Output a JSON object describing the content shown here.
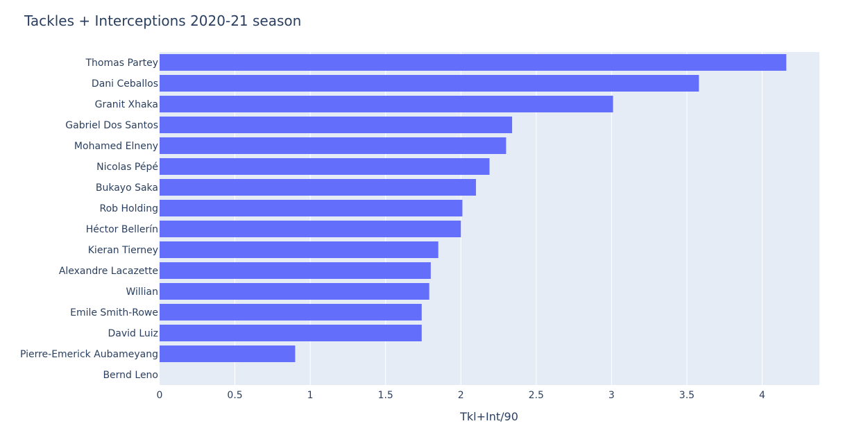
{
  "chart_data": {
    "type": "bar",
    "orientation": "horizontal",
    "title": "Tackles + Interceptions 2020-21 season",
    "xlabel": "Tkl+Int/90",
    "ylabel": "",
    "xlim": [
      0,
      4.38
    ],
    "x_ticks": [
      "0",
      "0.5",
      "1",
      "1.5",
      "2",
      "2.5",
      "3",
      "3.5",
      "4"
    ],
    "grid": true,
    "categories": [
      "Thomas Partey",
      "Dani Ceballos",
      "Granit Xhaka",
      "Gabriel Dos Santos",
      "Mohamed Elneny",
      "Nicolas Pépé",
      "Bukayo Saka",
      "Rob Holding",
      "Héctor Bellerín",
      "Kieran Tierney",
      "Alexandre Lacazette",
      "Willian",
      "Emile Smith-Rowe",
      "David Luiz",
      "Pierre-Emerick Aubameyang",
      "Bernd Leno"
    ],
    "values": [
      4.16,
      3.58,
      3.01,
      2.34,
      2.3,
      2.19,
      2.1,
      2.01,
      2.0,
      1.85,
      1.8,
      1.79,
      1.74,
      1.74,
      0.9,
      0
    ],
    "bar_color": "#636efa",
    "plot_bg": "#e5ecf6",
    "grid_color": "#ffffff"
  }
}
